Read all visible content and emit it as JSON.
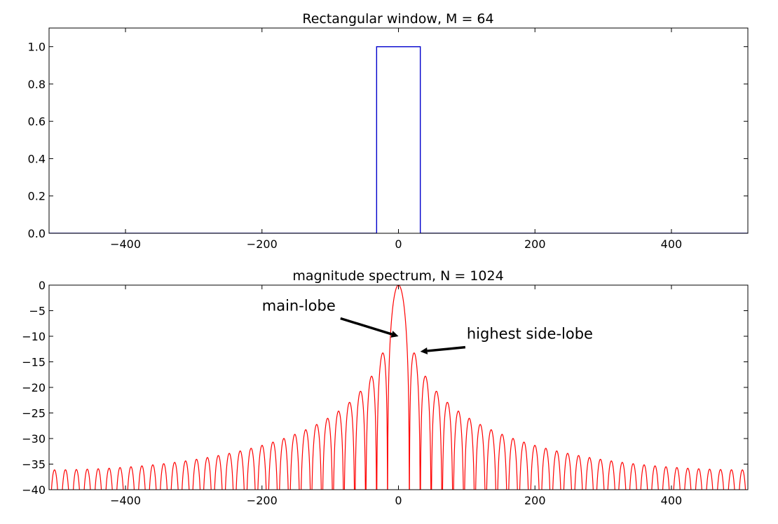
{
  "chart_data": [
    {
      "type": "line",
      "title": "Rectangular window, M = 64",
      "xlabel": "",
      "ylabel": "",
      "xlim": [
        -512,
        512
      ],
      "ylim": [
        0,
        1.1
      ],
      "xticks": [
        -400,
        -200,
        0,
        200,
        400
      ],
      "xtick_labels": [
        "−400",
        "−200",
        "0",
        "200",
        "400"
      ],
      "yticks": [
        0,
        0.2,
        0.4,
        0.6,
        0.8,
        1.0
      ],
      "ytick_labels": [
        "0.0",
        "0.2",
        "0.4",
        "0.6",
        "0.8",
        "1.0"
      ],
      "grid": false,
      "series": [
        {
          "color": "#0000cc",
          "x": [
            -512,
            -32,
            -32,
            32,
            32,
            512
          ],
          "y": [
            0,
            0,
            1,
            1,
            0,
            0
          ]
        }
      ]
    },
    {
      "type": "line",
      "title": "magnitude spectrum, N = 1024",
      "xlabel": "",
      "ylabel": "",
      "xlim": [
        -512,
        512
      ],
      "ylim": [
        -40,
        0
      ],
      "xticks": [
        -400,
        -200,
        0,
        200,
        400
      ],
      "xtick_labels": [
        "−400",
        "−200",
        "0",
        "200",
        "400"
      ],
      "yticks": [
        0,
        -5,
        -10,
        -15,
        -20,
        -25,
        -30,
        -35,
        -40
      ],
      "ytick_labels": [
        "0",
        "−5",
        "−10",
        "−15",
        "−20",
        "−25",
        "−30",
        "−35",
        "−40"
      ],
      "grid": false,
      "series": [
        {
          "color": "#ff0000",
          "function": "20*log10(|sin(pi*k*M/N) / (M*sin(pi*k/N))|)",
          "M": 64,
          "N": 1024
        }
      ],
      "annotations": [
        {
          "text": "main-lobe",
          "text_x": -200,
          "text_y": -5,
          "arrow_to_x": 0,
          "arrow_to_y": -10
        },
        {
          "text": "highest side-lobe",
          "text_x": 100,
          "text_y": -10.5,
          "arrow_to_x": 32,
          "arrow_to_y": -13
        }
      ]
    }
  ]
}
